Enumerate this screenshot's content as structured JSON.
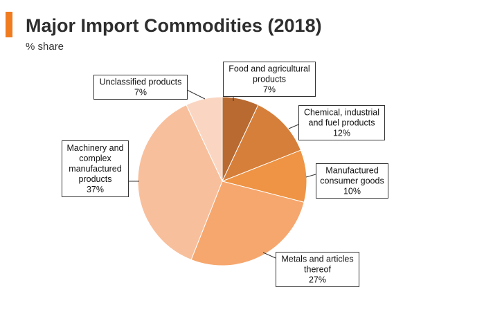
{
  "header": {
    "title": "Major Import Commodities (2018)",
    "subtitle": "% share",
    "accent_color": "#f07c1f"
  },
  "chart_data": {
    "type": "pie",
    "title": "Major Import Commodities (2018)",
    "unit": "% share",
    "start": "12 o'clock",
    "direction": "clockwise",
    "slices": [
      {
        "label_lines": [
          "Food and agricultural",
          "products"
        ],
        "value": 7,
        "value_label": "7%",
        "color": "#b86a31"
      },
      {
        "label_lines": [
          "Chemical, industrial",
          "and fuel products"
        ],
        "value": 12,
        "value_label": "12%",
        "color": "#d67f3a"
      },
      {
        "label_lines": [
          "Manufactured",
          "consumer goods"
        ],
        "value": 10,
        "value_label": "10%",
        "color": "#ee9444"
      },
      {
        "label_lines": [
          "Metals and articles",
          "thereof"
        ],
        "value": 27,
        "value_label": "27%",
        "color": "#f6a76e"
      },
      {
        "label_lines": [
          "Machinery and",
          "complex",
          "manufactured",
          "products"
        ],
        "value": 37,
        "value_label": "37%",
        "color": "#f8bf9c"
      },
      {
        "label_lines": [
          "Unclassified products"
        ],
        "value": 7,
        "value_label": "7%",
        "color": "#fad6c2"
      }
    ]
  }
}
